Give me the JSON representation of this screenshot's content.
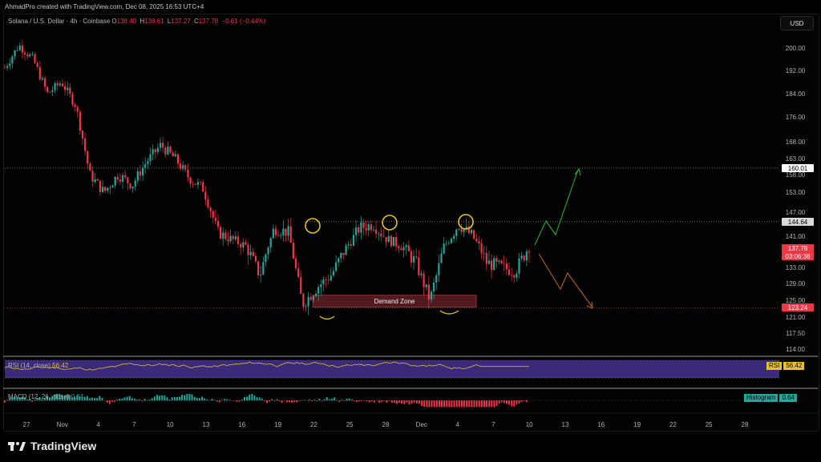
{
  "header": {
    "credit": "AhmadPro created with TradingView.com, Dec 08, 2025 16:53 UTC+4",
    "symbol": "Solana / U.S. Dollar · 4h · Coinbase",
    "ohlc": [
      {
        "key": "O",
        "value": "138.40"
      },
      {
        "key": "H",
        "value": "138.61"
      },
      {
        "key": "L",
        "value": "137.27"
      },
      {
        "key": "C",
        "value": "137.78"
      }
    ],
    "change": "−0.61 (−0.44%)",
    "currency_button": "USD"
  },
  "price_axis": {
    "ticks": [
      "200.00",
      "192.00",
      "184.00",
      "176.00",
      "168.00",
      "163.00",
      "158.00",
      "153.00",
      "147.00",
      "141.00",
      "137.00",
      "133.00",
      "129.00",
      "125.00",
      "121.00",
      "117.50",
      "114.00"
    ],
    "tags": [
      {
        "label": "160.01",
        "bg": "#ffffff",
        "fg": "#000000"
      },
      {
        "label": "144.64",
        "bg": "#d9d9d9",
        "fg": "#000000"
      },
      {
        "label": "137.78",
        "bg": "#f23645",
        "fg": "#ffffff"
      },
      {
        "label": "03:06:38",
        "bg": "#f23645",
        "fg": "#ffffff"
      },
      {
        "label": "123.24",
        "bg": "#f23645",
        "fg": "#ffffff"
      }
    ]
  },
  "time_axis": {
    "ticks": [
      "27",
      "Nov",
      "4",
      "7",
      "10",
      "13",
      "16",
      "19",
      "22",
      "25",
      "28",
      "Dec",
      "4",
      "7",
      "10",
      "13",
      "16",
      "19",
      "22",
      "25",
      "28"
    ]
  },
  "annotations": {
    "demand_zone": "Demand Zone"
  },
  "rsi": {
    "label": "RSI (14, close)",
    "value": "56.42",
    "badge_name": "RSI",
    "badge_value": "56.42"
  },
  "macd": {
    "label": "MACD (12, 26, close)",
    "value": "0.64",
    "badge_name": "Histogram",
    "badge_value": "0.64"
  },
  "footer": {
    "brand": "TradingView"
  },
  "colors": {
    "bull": "#26a69a",
    "bear": "#f23645",
    "rsi_band": "#3b2a7a",
    "rsi_line": "#c9b037",
    "highlight_circle": "#e6c229",
    "up_arrow": "#2fa82f",
    "down_arrow": "#b5651d"
  },
  "chart_data": {
    "type": "candlestick",
    "symbol": "SOLUSD",
    "interval": "4h",
    "close_path": [
      {
        "x": "Oct 25",
        "y": 193
      },
      {
        "x": "Oct 27",
        "y": 201
      },
      {
        "x": "Oct 29",
        "y": 196
      },
      {
        "x": "Nov 1",
        "y": 184
      },
      {
        "x": "Nov 2",
        "y": 188
      },
      {
        "x": "Nov 3",
        "y": 180
      },
      {
        "x": "Nov 4",
        "y": 158
      },
      {
        "x": "Nov 5",
        "y": 153
      },
      {
        "x": "Nov 6",
        "y": 158
      },
      {
        "x": "Nov 7",
        "y": 155
      },
      {
        "x": "Nov 8",
        "y": 162
      },
      {
        "x": "Nov 10",
        "y": 167
      },
      {
        "x": "Nov 11",
        "y": 163
      },
      {
        "x": "Nov 12",
        "y": 157
      },
      {
        "x": "Nov 13",
        "y": 154
      },
      {
        "x": "Nov 14",
        "y": 142
      },
      {
        "x": "Nov 15",
        "y": 140
      },
      {
        "x": "Nov 17",
        "y": 138
      },
      {
        "x": "Nov 18",
        "y": 131
      },
      {
        "x": "Nov 19",
        "y": 143
      },
      {
        "x": "Nov 20",
        "y": 142
      },
      {
        "x": "Nov 21",
        "y": 124
      },
      {
        "x": "Nov 22",
        "y": 128
      },
      {
        "x": "Nov 24",
        "y": 131
      },
      {
        "x": "Nov 25",
        "y": 137
      },
      {
        "x": "Nov 26",
        "y": 143
      },
      {
        "x": "Nov 27",
        "y": 144
      },
      {
        "x": "Nov 28",
        "y": 140
      },
      {
        "x": "Nov 29",
        "y": 138
      },
      {
        "x": "Nov 30",
        "y": 134
      },
      {
        "x": "Dec 1",
        "y": 125
      },
      {
        "x": "Dec 2",
        "y": 138
      },
      {
        "x": "Dec 3",
        "y": 144
      },
      {
        "x": "Dec 4",
        "y": 141
      },
      {
        "x": "Dec 5",
        "y": 134
      },
      {
        "x": "Dec 6",
        "y": 133
      },
      {
        "x": "Dec 7",
        "y": 132
      },
      {
        "x": "Dec 8",
        "y": 137.78
      }
    ],
    "levels": [
      {
        "name": "resistance",
        "value": 144.64
      },
      {
        "name": "target",
        "value": 160.01
      },
      {
        "name": "support",
        "value": 123.24
      }
    ],
    "demand_zone": [
      123.4,
      126.2
    ],
    "rsi_value": 56.42,
    "macd_histogram_value": 0.64
  }
}
